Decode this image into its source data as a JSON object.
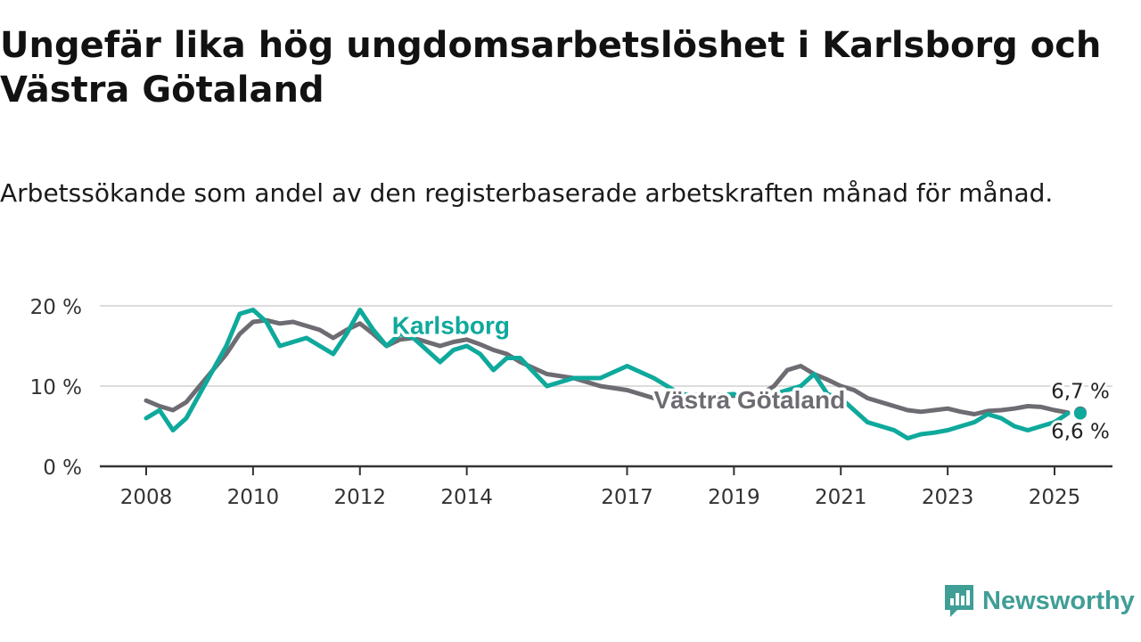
{
  "title": "Ungefär lika hög ungdomsarbetslöshet i Karlsborg och Västra Götaland",
  "subtitle": "Arbetssökande som andel av den registerbaserade arbetskraften månad för månad.",
  "brand": {
    "name": "Newsworthy",
    "icon": "newsworthy-logo-icon",
    "color": "#3f9e96"
  },
  "chart_data": {
    "type": "line",
    "title": "Ungefär lika hög ungdomsarbetslöshet i Karlsborg och Västra Götaland",
    "subtitle": "Arbetssökande som andel av den registerbaserade arbetskraften månad för månad.",
    "xlim": [
      2008.0,
      2026.1
    ],
    "ylim": [
      0,
      20
    ],
    "x_ticks": [
      2008,
      2010,
      2012,
      2014,
      2017,
      2019,
      2021,
      2023,
      2025
    ],
    "x_tick_labels": [
      "2008",
      "2010",
      "2012",
      "2014",
      "2017",
      "2019",
      "2021",
      "2023",
      "2025"
    ],
    "y_ticks": [
      0,
      10,
      20
    ],
    "y_tick_labels": [
      "0 %",
      "10 %",
      "20 %"
    ],
    "grid": true,
    "series": [
      {
        "name": "Västra Götaland",
        "color": "#6e6c72",
        "label_position": [
          2017.5,
          7.2
        ],
        "end_label": "6,7 %",
        "x": [
          2008.0,
          2008.25,
          2008.5,
          2008.75,
          2009.0,
          2009.25,
          2009.5,
          2009.75,
          2010.0,
          2010.25,
          2010.5,
          2010.75,
          2011.0,
          2011.25,
          2011.5,
          2011.75,
          2012.0,
          2012.25,
          2012.5,
          2012.75,
          2013.0,
          2013.25,
          2013.5,
          2013.75,
          2014.0,
          2014.25,
          2014.5,
          2014.75,
          2015.0,
          2015.5,
          2016.0,
          2016.5,
          2017.0,
          2017.5,
          2018.0,
          2018.5,
          2019.0,
          2019.25,
          2019.5,
          2019.75,
          2020.0,
          2020.25,
          2020.5,
          2020.75,
          2021.0,
          2021.25,
          2021.5,
          2021.75,
          2022.0,
          2022.25,
          2022.5,
          2022.75,
          2023.0,
          2023.25,
          2023.5,
          2023.75,
          2024.0,
          2024.25,
          2024.5,
          2024.75,
          2025.0,
          2025.25
        ],
        "y": [
          8.2,
          7.5,
          7.0,
          8.0,
          10.0,
          12.0,
          14.0,
          16.5,
          18.0,
          18.2,
          17.8,
          18.0,
          17.5,
          17.0,
          16.0,
          17.0,
          17.8,
          16.5,
          15.0,
          15.8,
          16.0,
          15.5,
          15.0,
          15.5,
          15.8,
          15.2,
          14.5,
          14.0,
          13.0,
          11.5,
          11.0,
          10.0,
          9.5,
          8.5,
          8.5,
          8.7,
          8.8,
          8.5,
          9.0,
          10.0,
          12.0,
          12.5,
          11.5,
          10.8,
          10.0,
          9.5,
          8.5,
          8.0,
          7.5,
          7.0,
          6.8,
          7.0,
          7.2,
          6.8,
          6.5,
          6.9,
          7.0,
          7.2,
          7.5,
          7.4,
          7.0,
          6.7
        ]
      },
      {
        "name": "Karlsborg",
        "color": "#0fa99c",
        "label_position": [
          2012.6,
          16.5
        ],
        "end_label": "6,6 %",
        "x": [
          2008.0,
          2008.25,
          2008.5,
          2008.75,
          2009.0,
          2009.25,
          2009.5,
          2009.75,
          2010.0,
          2010.25,
          2010.5,
          2010.75,
          2011.0,
          2011.25,
          2011.5,
          2011.75,
          2012.0,
          2012.25,
          2012.5,
          2012.75,
          2013.0,
          2013.25,
          2013.5,
          2013.75,
          2014.0,
          2014.25,
          2014.5,
          2014.75,
          2015.0,
          2015.5,
          2016.0,
          2016.5,
          2017.0,
          2017.5,
          2018.0,
          2018.5,
          2019.0,
          2019.25,
          2019.5,
          2019.75,
          2020.0,
          2020.25,
          2020.5,
          2020.75,
          2021.0,
          2021.25,
          2021.5,
          2021.75,
          2022.0,
          2022.25,
          2022.5,
          2022.75,
          2023.0,
          2023.25,
          2023.5,
          2023.75,
          2024.0,
          2024.25,
          2024.5,
          2024.75,
          2025.0,
          2025.25
        ],
        "y": [
          6.0,
          7.0,
          4.5,
          6.0,
          9.0,
          12.0,
          15.0,
          19.0,
          19.5,
          18.0,
          15.0,
          15.5,
          16.0,
          15.0,
          14.0,
          16.5,
          19.5,
          17.0,
          15.0,
          16.5,
          16.0,
          14.5,
          13.0,
          14.5,
          15.0,
          14.0,
          12.0,
          13.5,
          13.5,
          10.0,
          11.0,
          11.0,
          12.5,
          11.0,
          9.0,
          8.8,
          9.0,
          8.0,
          8.5,
          9.0,
          9.5,
          10.0,
          11.5,
          9.0,
          8.5,
          7.0,
          5.5,
          5.0,
          4.5,
          3.5,
          4.0,
          4.2,
          4.5,
          5.0,
          5.5,
          6.5,
          6.0,
          5.0,
          4.5,
          5.0,
          5.5,
          6.6
        ]
      }
    ]
  }
}
